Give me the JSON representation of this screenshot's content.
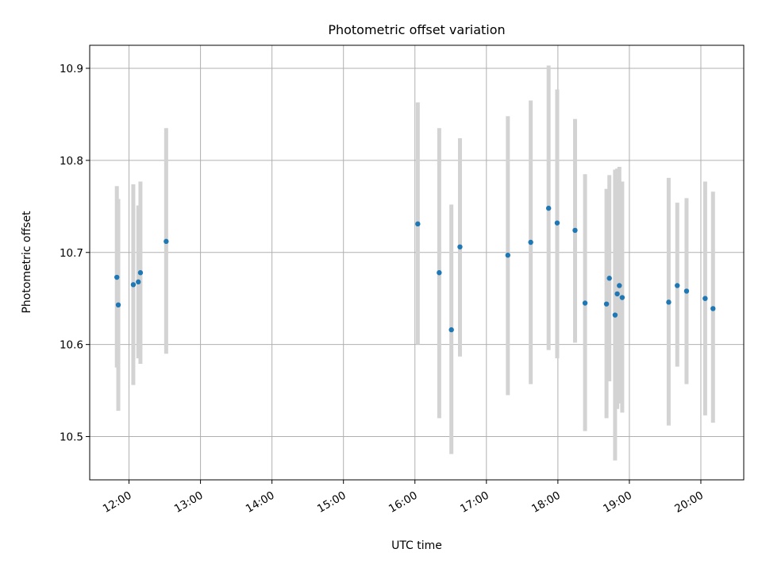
{
  "chart_data": {
    "type": "scatter",
    "title": "Photometric offset variation",
    "xlabel": "UTC time",
    "ylabel": "Photometric offset",
    "x_unit": "hours UTC",
    "xlim": [
      11.45,
      20.6
    ],
    "ylim": [
      10.453,
      10.925
    ],
    "grid": true,
    "x_ticks": [
      {
        "value": 12,
        "label": "12:00"
      },
      {
        "value": 13,
        "label": "13:00"
      },
      {
        "value": 14,
        "label": "14:00"
      },
      {
        "value": 15,
        "label": "15:00"
      },
      {
        "value": 16,
        "label": "16:00"
      },
      {
        "value": 17,
        "label": "17:00"
      },
      {
        "value": 18,
        "label": "18:00"
      },
      {
        "value": 19,
        "label": "19:00"
      },
      {
        "value": 20,
        "label": "20:00"
      }
    ],
    "y_ticks": [
      {
        "value": 10.5,
        "label": "10.5"
      },
      {
        "value": 10.6,
        "label": "10.6"
      },
      {
        "value": 10.7,
        "label": "10.7"
      },
      {
        "value": 10.8,
        "label": "10.8"
      },
      {
        "value": 10.9,
        "label": "10.9"
      }
    ],
    "colors": {
      "point": "#1f77b4",
      "errorbar": "#d3d3d3",
      "grid": "#b0b0b0",
      "axes": "#000000"
    },
    "points": [
      {
        "x": 11.83,
        "y": 10.673,
        "lo": 10.575,
        "hi": 10.772
      },
      {
        "x": 11.85,
        "y": 10.643,
        "lo": 10.528,
        "hi": 10.758
      },
      {
        "x": 12.06,
        "y": 10.665,
        "lo": 10.556,
        "hi": 10.774
      },
      {
        "x": 12.13,
        "y": 10.668,
        "lo": 10.585,
        "hi": 10.751
      },
      {
        "x": 12.16,
        "y": 10.678,
        "lo": 10.579,
        "hi": 10.777
      },
      {
        "x": 12.52,
        "y": 10.712,
        "lo": 10.59,
        "hi": 10.835
      },
      {
        "x": 16.04,
        "y": 10.731,
        "lo": 10.6,
        "hi": 10.863
      },
      {
        "x": 16.34,
        "y": 10.678,
        "lo": 10.52,
        "hi": 10.835
      },
      {
        "x": 16.51,
        "y": 10.616,
        "lo": 10.481,
        "hi": 10.752
      },
      {
        "x": 16.63,
        "y": 10.706,
        "lo": 10.587,
        "hi": 10.824
      },
      {
        "x": 17.3,
        "y": 10.697,
        "lo": 10.545,
        "hi": 10.848
      },
      {
        "x": 17.62,
        "y": 10.711,
        "lo": 10.557,
        "hi": 10.865
      },
      {
        "x": 17.87,
        "y": 10.748,
        "lo": 10.594,
        "hi": 10.903
      },
      {
        "x": 17.99,
        "y": 10.732,
        "lo": 10.585,
        "hi": 10.877
      },
      {
        "x": 18.24,
        "y": 10.724,
        "lo": 10.602,
        "hi": 10.845
      },
      {
        "x": 18.38,
        "y": 10.645,
        "lo": 10.506,
        "hi": 10.785
      },
      {
        "x": 18.68,
        "y": 10.644,
        "lo": 10.52,
        "hi": 10.769
      },
      {
        "x": 18.72,
        "y": 10.672,
        "lo": 10.56,
        "hi": 10.784
      },
      {
        "x": 18.8,
        "y": 10.632,
        "lo": 10.474,
        "hi": 10.79
      },
      {
        "x": 18.83,
        "y": 10.655,
        "lo": 10.53,
        "hi": 10.791
      },
      {
        "x": 18.86,
        "y": 10.664,
        "lo": 10.536,
        "hi": 10.793
      },
      {
        "x": 18.9,
        "y": 10.651,
        "lo": 10.526,
        "hi": 10.777
      },
      {
        "x": 19.55,
        "y": 10.646,
        "lo": 10.512,
        "hi": 10.781
      },
      {
        "x": 19.67,
        "y": 10.664,
        "lo": 10.576,
        "hi": 10.754
      },
      {
        "x": 19.8,
        "y": 10.658,
        "lo": 10.557,
        "hi": 10.759
      },
      {
        "x": 20.06,
        "y": 10.65,
        "lo": 10.523,
        "hi": 10.777
      },
      {
        "x": 20.17,
        "y": 10.639,
        "lo": 10.515,
        "hi": 10.766
      }
    ]
  }
}
